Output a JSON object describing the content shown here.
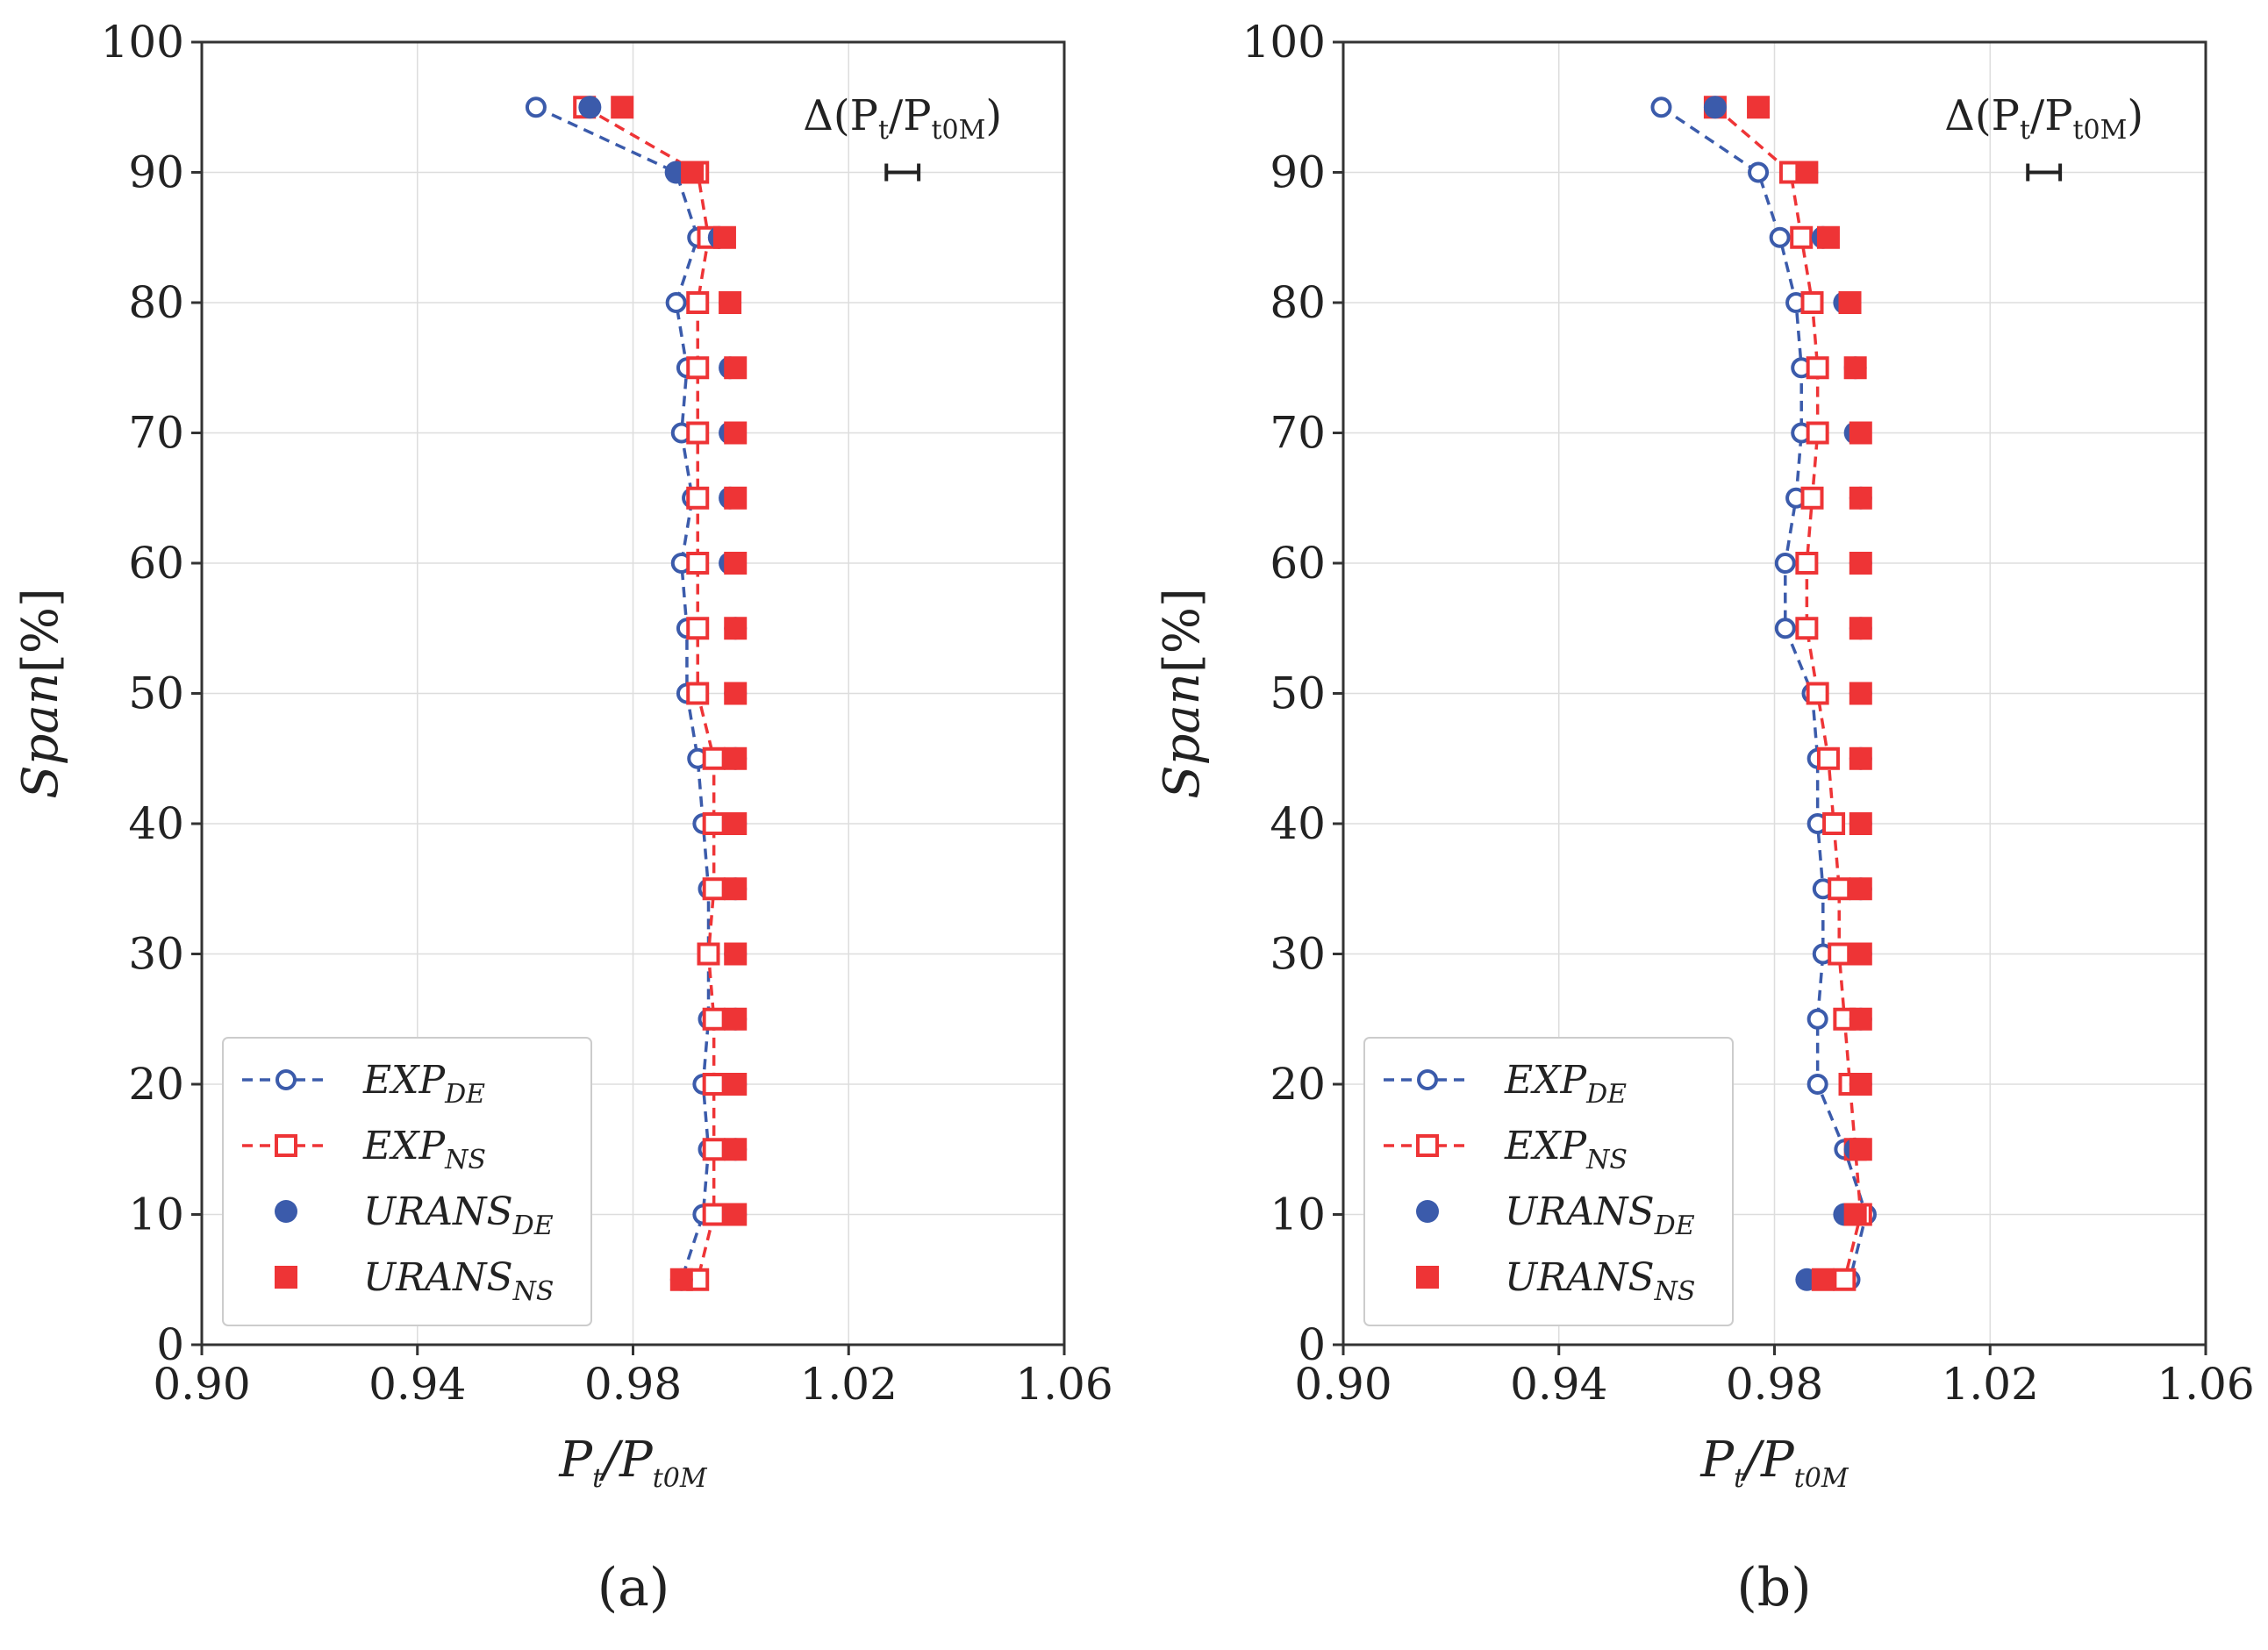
{
  "colors": {
    "blue": "#3b5bab",
    "red": "#ee3436",
    "grid": "#dddddd",
    "axis": "#333333"
  },
  "chart_data": [
    {
      "type": "scatter",
      "panel_label": "(a)",
      "xlabel": {
        "main": "P",
        "sub1": "t",
        "slash": "/P",
        "sub2": "t0M"
      },
      "ylabel": {
        "main": "Span",
        "unit": "[%]"
      },
      "xlim": [
        0.9,
        1.06
      ],
      "ylim": [
        0,
        100
      ],
      "xticks": [
        "0.90",
        "0.94",
        "0.98",
        "1.02",
        "1.06"
      ],
      "xtick_values": [
        0.9,
        0.94,
        0.98,
        1.02,
        1.06
      ],
      "yticks": [
        "0",
        "10",
        "20",
        "30",
        "40",
        "50",
        "60",
        "70",
        "80",
        "90",
        "100"
      ],
      "ytick_values": [
        0,
        10,
        20,
        30,
        40,
        50,
        60,
        70,
        80,
        90,
        100
      ],
      "grid": true,
      "legend_position": "lower-left",
      "error_bar": {
        "label_prefix": "Δ(P",
        "sub1": "t",
        "mid": "/P",
        "sub2": "t0M",
        "suffix": ")",
        "x_center": 1.03,
        "half_width": 0.003,
        "y": 90
      },
      "series": [
        {
          "name": "EXP",
          "subscript": "DE",
          "style": "line-open-circle",
          "color": "blue",
          "x": [
            0.962,
            0.988,
            0.992,
            0.988,
            0.99,
            0.989,
            0.991,
            0.989,
            0.99,
            0.99,
            0.992,
            0.993,
            0.994,
            0.994,
            0.994,
            0.993,
            0.994,
            0.993,
            0.989
          ],
          "y": [
            95,
            90,
            85,
            80,
            75,
            70,
            65,
            60,
            55,
            50,
            45,
            40,
            35,
            30,
            25,
            20,
            15,
            10,
            5
          ]
        },
        {
          "name": "EXP",
          "subscript": "NS",
          "style": "line-open-square",
          "color": "red",
          "x": [
            0.971,
            0.992,
            0.994,
            0.992,
            0.992,
            0.992,
            0.992,
            0.992,
            0.992,
            0.992,
            0.995,
            0.995,
            0.995,
            0.994,
            0.995,
            0.995,
            0.995,
            0.995,
            0.992
          ],
          "y": [
            95,
            90,
            85,
            80,
            75,
            70,
            65,
            60,
            55,
            50,
            45,
            40,
            35,
            30,
            25,
            20,
            15,
            10,
            5
          ]
        },
        {
          "name": "URANS",
          "subscript": "DE",
          "style": "filled-circle",
          "color": "blue",
          "x": [
            0.972,
            0.988,
            0.996,
            0.998,
            0.998,
            0.998,
            0.998,
            0.998,
            0.999,
            0.999,
            0.999,
            0.999,
            0.999,
            0.999,
            0.999,
            0.999,
            0.999,
            0.999,
            0.989
          ],
          "y": [
            95,
            90,
            85,
            80,
            75,
            70,
            65,
            60,
            55,
            50,
            45,
            40,
            35,
            30,
            25,
            20,
            15,
            10,
            5
          ]
        },
        {
          "name": "URANS",
          "subscript": "NS",
          "style": "filled-square",
          "color": "red",
          "x": [
            0.978,
            0.991,
            0.997,
            0.998,
            0.999,
            0.999,
            0.999,
            0.999,
            0.999,
            0.999,
            0.999,
            0.999,
            0.999,
            0.999,
            0.999,
            0.999,
            0.999,
            0.999,
            0.989
          ],
          "y": [
            95,
            90,
            85,
            80,
            75,
            70,
            65,
            60,
            55,
            50,
            45,
            40,
            35,
            30,
            25,
            20,
            15,
            10,
            5
          ]
        }
      ]
    },
    {
      "type": "scatter",
      "panel_label": "(b)",
      "xlabel": {
        "main": "P",
        "sub1": "t",
        "slash": "/P",
        "sub2": "t0M"
      },
      "ylabel": {
        "main": "Span",
        "unit": "[%]"
      },
      "xlim": [
        0.9,
        1.06
      ],
      "ylim": [
        0,
        100
      ],
      "xticks": [
        "0.90",
        "0.94",
        "0.98",
        "1.02",
        "1.06"
      ],
      "xtick_values": [
        0.9,
        0.94,
        0.98,
        1.02,
        1.06
      ],
      "yticks": [
        "0",
        "10",
        "20",
        "30",
        "40",
        "50",
        "60",
        "70",
        "80",
        "90",
        "100"
      ],
      "ytick_values": [
        0,
        10,
        20,
        30,
        40,
        50,
        60,
        70,
        80,
        90,
        100
      ],
      "grid": true,
      "legend_position": "lower-left",
      "error_bar": {
        "label_prefix": "Δ(P",
        "sub1": "t",
        "mid": "/P",
        "sub2": "t0M",
        "suffix": ")",
        "x_center": 1.03,
        "half_width": 0.003,
        "y": 90
      },
      "series": [
        {
          "name": "EXP",
          "subscript": "DE",
          "style": "line-open-circle",
          "color": "blue",
          "x": [
            0.959,
            0.977,
            0.981,
            0.984,
            0.985,
            0.985,
            0.984,
            0.982,
            0.982,
            0.987,
            0.988,
            0.988,
            0.989,
            0.989,
            0.988,
            0.988,
            0.993,
            0.997,
            0.994
          ],
          "y": [
            95,
            90,
            85,
            80,
            75,
            70,
            65,
            60,
            55,
            50,
            45,
            40,
            35,
            30,
            25,
            20,
            15,
            10,
            5
          ]
        },
        {
          "name": "EXP",
          "subscript": "NS",
          "style": "line-open-square",
          "color": "red",
          "x": [
            0.969,
            0.983,
            0.985,
            0.987,
            0.988,
            0.988,
            0.987,
            0.986,
            0.986,
            0.988,
            0.99,
            0.991,
            0.992,
            0.992,
            0.993,
            0.994,
            0.995,
            0.996,
            0.993
          ],
          "y": [
            95,
            90,
            85,
            80,
            75,
            70,
            65,
            60,
            55,
            50,
            45,
            40,
            35,
            30,
            25,
            20,
            15,
            10,
            5
          ]
        },
        {
          "name": "URANS",
          "subscript": "DE",
          "style": "filled-circle",
          "color": "blue",
          "x": [
            0.969,
            0.986,
            0.989,
            0.993,
            0.995,
            0.995,
            0.996,
            0.996,
            0.996,
            0.996,
            0.996,
            0.996,
            0.996,
            0.996,
            0.996,
            0.996,
            0.995,
            0.993,
            0.986
          ],
          "y": [
            95,
            90,
            85,
            80,
            75,
            70,
            65,
            60,
            55,
            50,
            45,
            40,
            35,
            30,
            25,
            20,
            15,
            10,
            5
          ]
        },
        {
          "name": "URANS",
          "subscript": "NS",
          "style": "filled-square",
          "color": "red",
          "x": [
            0.977,
            0.986,
            0.99,
            0.994,
            0.995,
            0.996,
            0.996,
            0.996,
            0.996,
            0.996,
            0.996,
            0.996,
            0.996,
            0.996,
            0.996,
            0.996,
            0.996,
            0.995,
            0.989
          ],
          "y": [
            95,
            90,
            85,
            80,
            75,
            70,
            65,
            60,
            55,
            50,
            45,
            40,
            35,
            30,
            25,
            20,
            15,
            10,
            5
          ]
        }
      ]
    }
  ]
}
